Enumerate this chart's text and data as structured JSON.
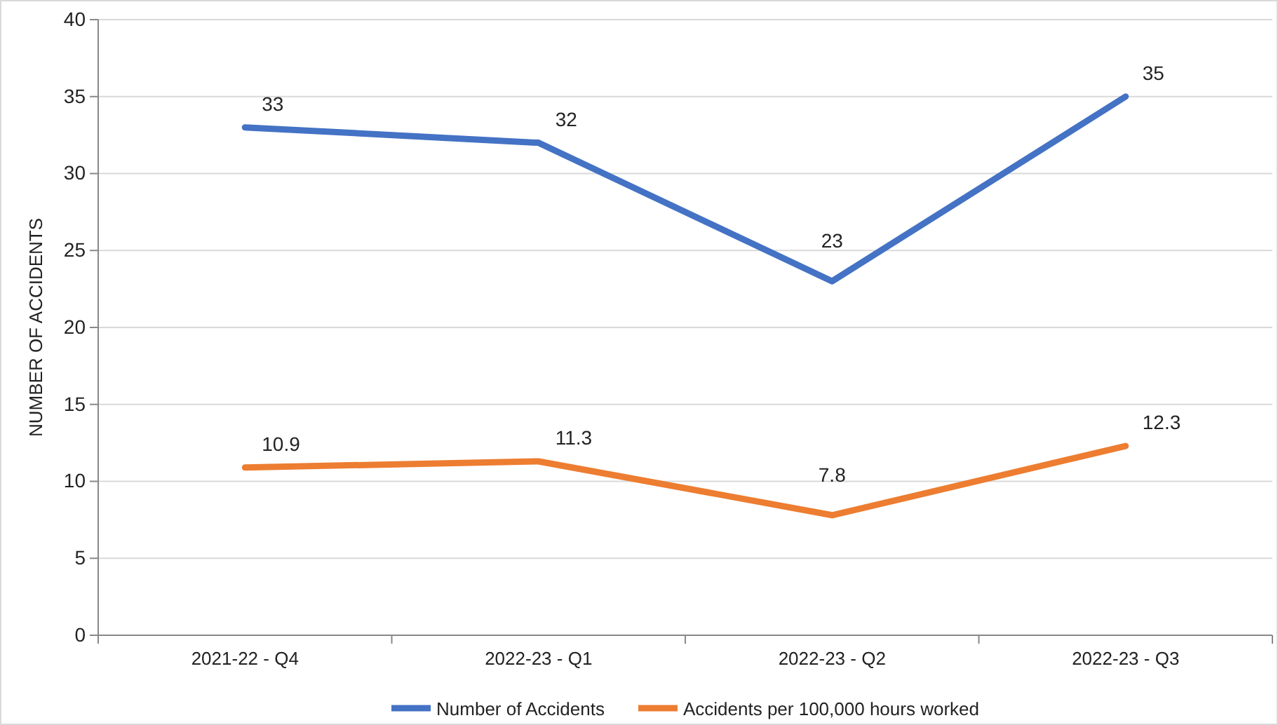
{
  "chart_data": {
    "type": "line",
    "ylabel": "NUMBER OF ACCIDENTS",
    "categories": [
      "2021-22 - Q4",
      "2022-23 - Q1",
      "2022-23 - Q2",
      "2022-23 - Q3"
    ],
    "series": [
      {
        "name": "Number of Accidents",
        "color": "#4472c4",
        "values": [
          33,
          32,
          23,
          35
        ]
      },
      {
        "name": "Accidents per 100,000 hours worked",
        "color": "#ed7d31",
        "values": [
          10.9,
          11.3,
          7.8,
          12.3
        ]
      }
    ],
    "ylim": [
      0,
      40
    ],
    "yticks": [
      0,
      5,
      10,
      15,
      20,
      25,
      30,
      35,
      40
    ],
    "grid": "y",
    "legend": "bottom",
    "data_labels": true,
    "marker": "none",
    "line_style": "solid"
  }
}
